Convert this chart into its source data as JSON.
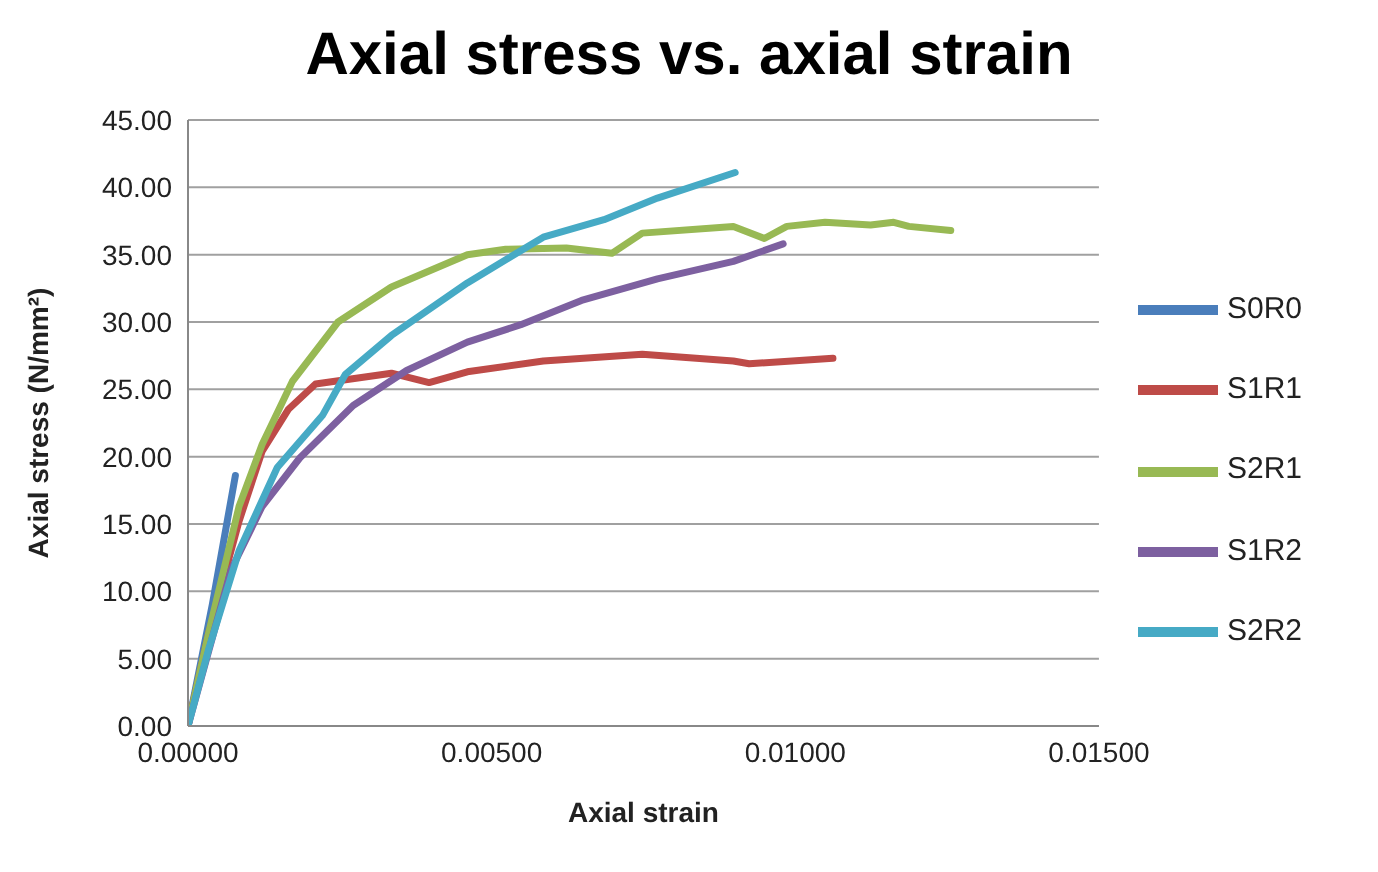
{
  "chart_data": {
    "type": "line",
    "title": "Axial stress vs. axial strain",
    "xlabel": "Axial strain",
    "ylabel": "Axial stress (N/mm²)",
    "xlim": [
      0,
      0.015
    ],
    "xticks": [
      {
        "value": 0,
        "label": "0.00000"
      },
      {
        "value": 0.005,
        "label": "0.00500"
      },
      {
        "value": 0.01,
        "label": "0.01000"
      },
      {
        "value": 0.015,
        "label": "0.01500"
      }
    ],
    "ylim": [
      0,
      45
    ],
    "yticks": [
      {
        "value": 0,
        "label": "0.00"
      },
      {
        "value": 5,
        "label": "5.00"
      },
      {
        "value": 10,
        "label": "10.00"
      },
      {
        "value": 15,
        "label": "15.00"
      },
      {
        "value": 20,
        "label": "20.00"
      },
      {
        "value": 25,
        "label": "25.00"
      },
      {
        "value": 30,
        "label": "30.00"
      },
      {
        "value": 35,
        "label": "35.00"
      },
      {
        "value": 40,
        "label": "40.00"
      },
      {
        "value": 45,
        "label": "45.00"
      }
    ],
    "grid": "y",
    "legend": "right",
    "marker": "none",
    "line_style": "solid",
    "series": [
      {
        "name": "S0R0",
        "color": "#4a7ebb",
        "x": [
          0,
          0.0004,
          0.00078
        ],
        "values": [
          0,
          9,
          18.6
        ]
      },
      {
        "name": "S1R1",
        "color": "#be4b48",
        "x": [
          0,
          0.00034,
          0.00084,
          0.00122,
          0.00165,
          0.0021,
          0.00335,
          0.00397,
          0.0046,
          0.00585,
          0.00748,
          0.00898,
          0.00924,
          0.01062
        ],
        "values": [
          0,
          6.9,
          15.2,
          20.4,
          23.5,
          25.4,
          26.2,
          25.5,
          26.3,
          27.1,
          27.6,
          27.1,
          26.9,
          27.3
        ]
      },
      {
        "name": "S2R1",
        "color": "#98b954",
        "x": [
          0,
          0.00034,
          0.00084,
          0.00122,
          0.00172,
          0.00247,
          0.00335,
          0.0046,
          0.00523,
          0.00623,
          0.00698,
          0.00748,
          0.00898,
          0.00949,
          0.00986,
          0.01049,
          0.01124,
          0.01162,
          0.01187,
          0.01256
        ],
        "values": [
          0,
          6.9,
          16.3,
          20.9,
          25.6,
          30,
          32.6,
          35,
          35.4,
          35.5,
          35.1,
          36.6,
          37.1,
          36.2,
          37.1,
          37.4,
          37.2,
          37.4,
          37.1,
          36.8
        ]
      },
      {
        "name": "S1R2",
        "color": "#7d60a0",
        "x": [
          0,
          0.00071,
          0.00122,
          0.00184,
          0.00272,
          0.0036,
          0.0046,
          0.00548,
          0.00648,
          0.00773,
          0.00898,
          0.0098
        ],
        "values": [
          0,
          11.6,
          16.3,
          19.9,
          23.8,
          26.4,
          28.5,
          29.8,
          31.6,
          33.2,
          34.5,
          35.8
        ]
      },
      {
        "name": "S2R2",
        "color": "#46aac5",
        "x": [
          0,
          0.00034,
          0.00084,
          0.00147,
          0.00222,
          0.00259,
          0.00335,
          0.0046,
          0.00585,
          0.00685,
          0.00773,
          0.00901
        ],
        "values": [
          0,
          5.7,
          13,
          19.2,
          23.1,
          26.1,
          29,
          32.9,
          36.3,
          37.6,
          39.2,
          41.1
        ]
      }
    ]
  }
}
